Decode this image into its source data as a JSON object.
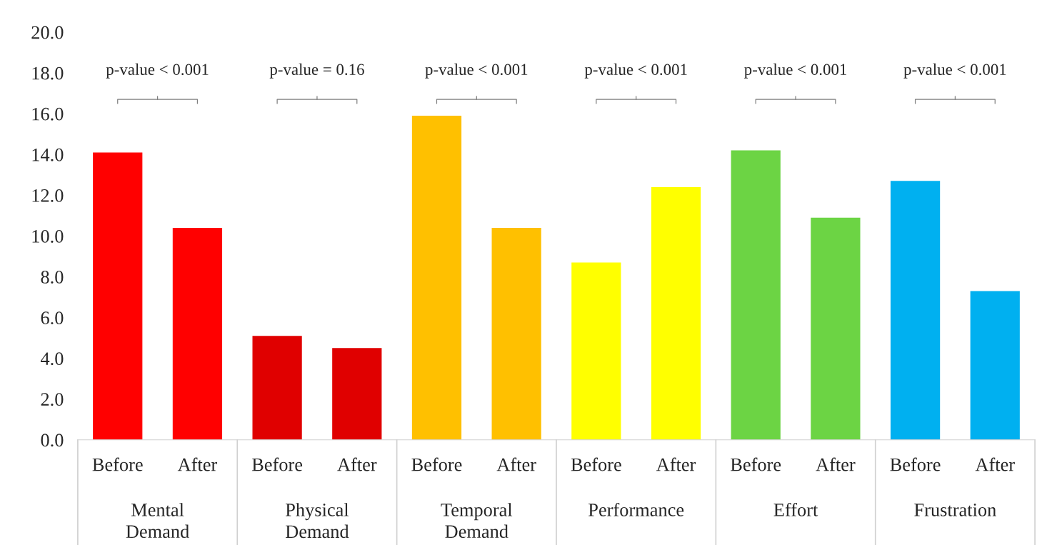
{
  "chart_data": {
    "type": "bar",
    "categories": [
      "Before",
      "After",
      "Before",
      "After",
      "Before",
      "After",
      "Before",
      "After",
      "Before",
      "After",
      "Before",
      "After"
    ],
    "values": [
      14.1,
      10.4,
      5.1,
      4.5,
      15.9,
      10.4,
      8.7,
      12.4,
      14.2,
      10.9,
      12.7,
      7.3
    ],
    "colors": [
      "#ff0000",
      "#ff0000",
      "#e00000",
      "#e00000",
      "#ffc000",
      "#ffc000",
      "#ffff00",
      "#ffff00",
      "#6cd444",
      "#6cd444",
      "#00b0f0",
      "#00b0f0"
    ],
    "ylim": [
      0,
      20
    ],
    "yticks": [
      {
        "value": 0,
        "label": "0.0"
      },
      {
        "value": 2,
        "label": "2.0"
      },
      {
        "value": 4,
        "label": "4.0"
      },
      {
        "value": 6,
        "label": "6.0"
      },
      {
        "value": 8,
        "label": "8.0"
      },
      {
        "value": 10,
        "label": "10.0"
      },
      {
        "value": 12,
        "label": "12.0"
      },
      {
        "value": 14,
        "label": "14.0"
      },
      {
        "value": 16,
        "label": "16.0"
      },
      {
        "value": 18,
        "label": "18.0"
      },
      {
        "value": 20,
        "label": "20.0"
      }
    ],
    "grid": false,
    "annotations": [
      "p-value < 0.001",
      "p-value = 0.16",
      "p-value < 0.001",
      "p-value < 0.001",
      "p-value < 0.001",
      "p-value < 0.001",
      "Mental Demand",
      "Physical Demand",
      "Temporal Demand",
      "Performance",
      "Effort",
      "Frustration"
    ]
  }
}
